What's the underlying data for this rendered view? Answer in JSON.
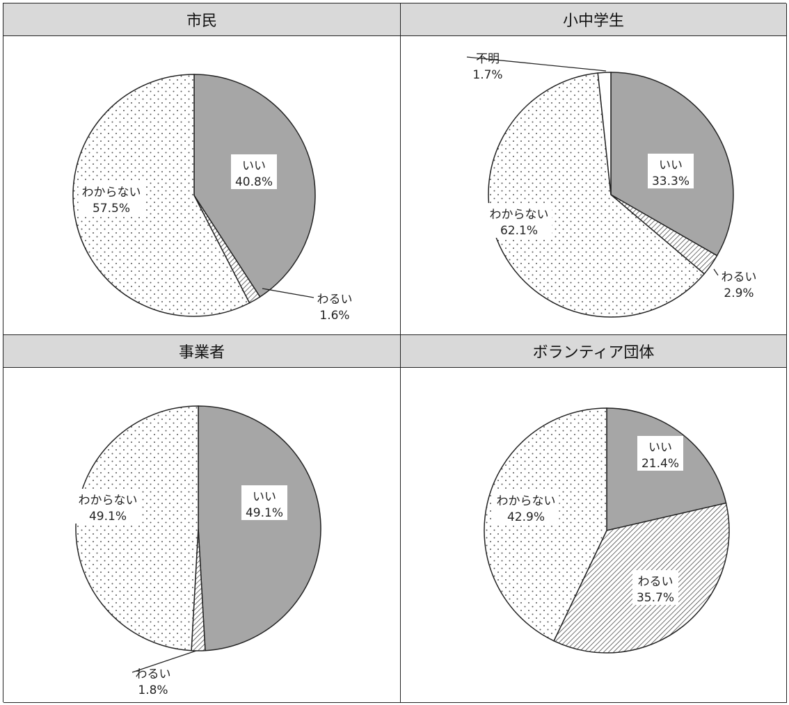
{
  "chart_data": [
    {
      "type": "pie",
      "title": "市民",
      "slices": [
        {
          "label": "いい",
          "value": 40.8,
          "value_text": "40.8%",
          "fill": "gray"
        },
        {
          "label": "わるい",
          "value": 1.6,
          "value_text": "1.6%",
          "fill": "hatch"
        },
        {
          "label": "わからない",
          "value": 57.5,
          "value_text": "57.5%",
          "fill": "dots"
        }
      ]
    },
    {
      "type": "pie",
      "title": "小中学生",
      "slices": [
        {
          "label": "いい",
          "value": 33.3,
          "value_text": "33.3%",
          "fill": "gray"
        },
        {
          "label": "わるい",
          "value": 2.9,
          "value_text": "2.9%",
          "fill": "hatch"
        },
        {
          "label": "わからない",
          "value": 62.1,
          "value_text": "62.1%",
          "fill": "dots"
        },
        {
          "label": "不明",
          "value": 1.7,
          "value_text": "1.7%",
          "fill": "white"
        }
      ]
    },
    {
      "type": "pie",
      "title": "事業者",
      "slices": [
        {
          "label": "いい",
          "value": 49.1,
          "value_text": "49.1%",
          "fill": "gray"
        },
        {
          "label": "わるい",
          "value": 1.8,
          "value_text": "1.8%",
          "fill": "hatch"
        },
        {
          "label": "わからない",
          "value": 49.1,
          "value_text": "49.1%",
          "fill": "dots"
        }
      ]
    },
    {
      "type": "pie",
      "title": "ボランティア団体",
      "slices": [
        {
          "label": "いい",
          "value": 21.4,
          "value_text": "21.4%",
          "fill": "gray"
        },
        {
          "label": "わるい",
          "value": 35.7,
          "value_text": "35.7%",
          "fill": "hatch"
        },
        {
          "label": "わからない",
          "value": 42.9,
          "value_text": "42.9%",
          "fill": "dots"
        }
      ]
    }
  ],
  "colors": {
    "gray": "#a6a6a6",
    "white": "#ffffff",
    "stroke": "#222222",
    "header": "#d9d9d9"
  }
}
